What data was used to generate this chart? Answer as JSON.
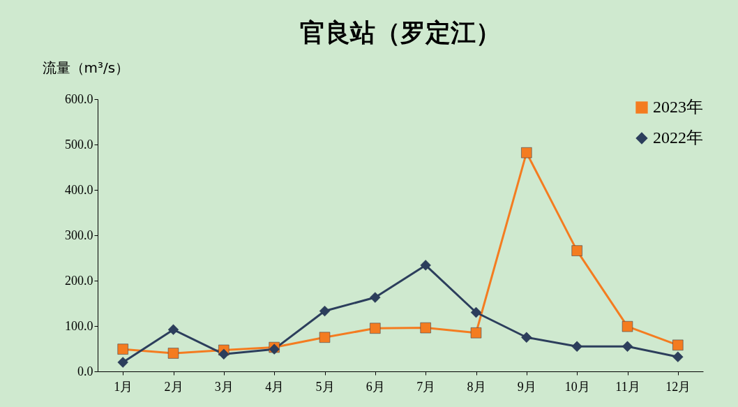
{
  "chart_data": {
    "type": "line",
    "title": "官良站（罗定江）",
    "ylabel": "流量（m³/s）",
    "categories": [
      "1月",
      "2月",
      "3月",
      "4月",
      "5月",
      "6月",
      "7月",
      "8月",
      "9月",
      "10月",
      "11月",
      "12月"
    ],
    "series": [
      {
        "name": "2023年",
        "color": "#f47c20",
        "marker": "square",
        "values": [
          49,
          40,
          47,
          53,
          75,
          95,
          96,
          85,
          482,
          266,
          99,
          58
        ]
      },
      {
        "name": "2022年",
        "color": "#2c3e5c",
        "marker": "diamond",
        "values": [
          20,
          92,
          38,
          49,
          133,
          163,
          234,
          130,
          75,
          55,
          55,
          32
        ]
      }
    ],
    "ylim": [
      0,
      600
    ],
    "yticks": [
      {
        "value": 0,
        "label": "0.0"
      },
      {
        "value": 100,
        "label": "100.0"
      },
      {
        "value": 200,
        "label": "200.0"
      },
      {
        "value": 300,
        "label": "300.0"
      },
      {
        "value": 400,
        "label": "400.0"
      },
      {
        "value": 500,
        "label": "500.0"
      },
      {
        "value": 600,
        "label": "600.0"
      }
    ],
    "grid": false,
    "legend": "top right",
    "line_style": "solid"
  }
}
